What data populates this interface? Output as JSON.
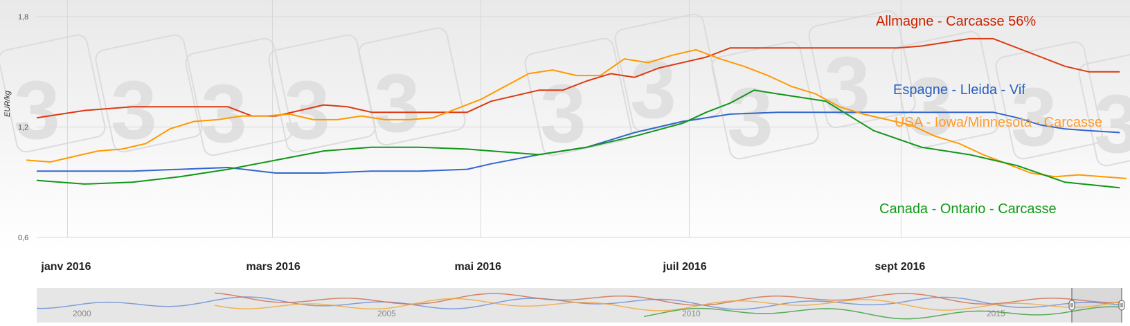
{
  "chart_data": {
    "type": "line",
    "ylabel": "EUR/kg",
    "ylim": [
      0.6,
      1.8
    ],
    "yticks": [
      0.6,
      1.2,
      1.8
    ],
    "ytick_labels": [
      "0,6",
      "1,2",
      "1,8"
    ],
    "xlim": [
      "2015-12-23",
      "2016-11-07"
    ],
    "xticks": [
      {
        "date": "2016-01-01",
        "label": "janv 2016"
      },
      {
        "date": "2016-03-01",
        "label": "mars 2016"
      },
      {
        "date": "2016-05-01",
        "label": "mai 2016"
      },
      {
        "date": "2016-07-01",
        "label": "juil 2016"
      },
      {
        "date": "2016-09-01",
        "label": "sept 2016"
      }
    ],
    "grid": true,
    "legend": "inline-labels",
    "series": [
      {
        "name": "Allmagne - Carcasse 56%",
        "color": "#dc3912",
        "points": [
          [
            "2015-12-23",
            1.25
          ],
          [
            "2016-01-06",
            1.29
          ],
          [
            "2016-01-20",
            1.31
          ],
          [
            "2016-02-03",
            1.31
          ],
          [
            "2016-02-17",
            1.31
          ],
          [
            "2016-02-24",
            1.26
          ],
          [
            "2016-03-02",
            1.26
          ],
          [
            "2016-03-16",
            1.32
          ],
          [
            "2016-03-23",
            1.31
          ],
          [
            "2016-03-30",
            1.28
          ],
          [
            "2016-04-13",
            1.28
          ],
          [
            "2016-04-27",
            1.28
          ],
          [
            "2016-05-04",
            1.34
          ],
          [
            "2016-05-18",
            1.4
          ],
          [
            "2016-05-25",
            1.4
          ],
          [
            "2016-06-01",
            1.45
          ],
          [
            "2016-06-08",
            1.49
          ],
          [
            "2016-06-15",
            1.47
          ],
          [
            "2016-06-22",
            1.52
          ],
          [
            "2016-07-06",
            1.58
          ],
          [
            "2016-07-13",
            1.63
          ],
          [
            "2016-07-27",
            1.63
          ],
          [
            "2016-08-10",
            1.63
          ],
          [
            "2016-08-31",
            1.63
          ],
          [
            "2016-09-07",
            1.64
          ],
          [
            "2016-09-21",
            1.68
          ],
          [
            "2016-09-28",
            1.68
          ],
          [
            "2016-10-12",
            1.58
          ],
          [
            "2016-10-19",
            1.53
          ],
          [
            "2016-10-26",
            1.5
          ],
          [
            "2016-11-04",
            1.5
          ]
        ]
      },
      {
        "name": "Espagne - Lleida - Vif",
        "color": "#3366cc",
        "points": [
          [
            "2015-12-23",
            0.96
          ],
          [
            "2016-01-06",
            0.96
          ],
          [
            "2016-01-20",
            0.96
          ],
          [
            "2016-02-03",
            0.97
          ],
          [
            "2016-02-17",
            0.98
          ],
          [
            "2016-03-02",
            0.95
          ],
          [
            "2016-03-16",
            0.95
          ],
          [
            "2016-03-30",
            0.96
          ],
          [
            "2016-04-13",
            0.96
          ],
          [
            "2016-04-27",
            0.97
          ],
          [
            "2016-05-04",
            1.0
          ],
          [
            "2016-05-18",
            1.05
          ],
          [
            "2016-06-01",
            1.09
          ],
          [
            "2016-06-15",
            1.17
          ],
          [
            "2016-06-29",
            1.23
          ],
          [
            "2016-07-13",
            1.27
          ],
          [
            "2016-07-27",
            1.28
          ],
          [
            "2016-08-10",
            1.28
          ],
          [
            "2016-08-24",
            1.28
          ],
          [
            "2016-09-07",
            1.28
          ],
          [
            "2016-09-21",
            1.28
          ],
          [
            "2016-09-28",
            1.28
          ],
          [
            "2016-10-05",
            1.25
          ],
          [
            "2016-10-12",
            1.21
          ],
          [
            "2016-10-19",
            1.19
          ],
          [
            "2016-10-26",
            1.18
          ],
          [
            "2016-11-04",
            1.17
          ]
        ]
      },
      {
        "name": "USA - Iowa/Minnesota - Carcasse",
        "color": "#ff9900",
        "points": [
          [
            "2015-12-20",
            1.02
          ],
          [
            "2015-12-27",
            1.01
          ],
          [
            "2016-01-03",
            1.04
          ],
          [
            "2016-01-10",
            1.07
          ],
          [
            "2016-01-17",
            1.08
          ],
          [
            "2016-01-24",
            1.11
          ],
          [
            "2016-01-31",
            1.19
          ],
          [
            "2016-02-07",
            1.23
          ],
          [
            "2016-02-14",
            1.24
          ],
          [
            "2016-02-21",
            1.26
          ],
          [
            "2016-02-28",
            1.26
          ],
          [
            "2016-03-06",
            1.27
          ],
          [
            "2016-03-13",
            1.24
          ],
          [
            "2016-03-20",
            1.24
          ],
          [
            "2016-03-27",
            1.26
          ],
          [
            "2016-04-03",
            1.24
          ],
          [
            "2016-04-10",
            1.24
          ],
          [
            "2016-04-17",
            1.25
          ],
          [
            "2016-04-24",
            1.3
          ],
          [
            "2016-05-01",
            1.35
          ],
          [
            "2016-05-08",
            1.42
          ],
          [
            "2016-05-15",
            1.49
          ],
          [
            "2016-05-22",
            1.51
          ],
          [
            "2016-05-29",
            1.48
          ],
          [
            "2016-06-05",
            1.48
          ],
          [
            "2016-06-12",
            1.57
          ],
          [
            "2016-06-19",
            1.55
          ],
          [
            "2016-06-26",
            1.59
          ],
          [
            "2016-07-03",
            1.62
          ],
          [
            "2016-07-10",
            1.57
          ],
          [
            "2016-07-17",
            1.53
          ],
          [
            "2016-07-24",
            1.48
          ],
          [
            "2016-07-31",
            1.42
          ],
          [
            "2016-08-07",
            1.38
          ],
          [
            "2016-08-14",
            1.31
          ],
          [
            "2016-08-21",
            1.27
          ],
          [
            "2016-08-28",
            1.24
          ],
          [
            "2016-09-04",
            1.21
          ],
          [
            "2016-09-11",
            1.15
          ],
          [
            "2016-09-18",
            1.11
          ],
          [
            "2016-09-25",
            1.05
          ],
          [
            "2016-10-02",
            1.0
          ],
          [
            "2016-10-09",
            0.95
          ],
          [
            "2016-10-16",
            0.93
          ],
          [
            "2016-10-23",
            0.94
          ],
          [
            "2016-10-30",
            0.93
          ],
          [
            "2016-11-06",
            0.92
          ]
        ]
      },
      {
        "name": "Canada - Ontario - Carcasse",
        "color": "#109618",
        "points": [
          [
            "2015-12-23",
            0.91
          ],
          [
            "2016-01-06",
            0.89
          ],
          [
            "2016-01-20",
            0.9
          ],
          [
            "2016-02-03",
            0.93
          ],
          [
            "2016-02-17",
            0.97
          ],
          [
            "2016-03-02",
            1.02
          ],
          [
            "2016-03-16",
            1.07
          ],
          [
            "2016-03-30",
            1.09
          ],
          [
            "2016-04-13",
            1.09
          ],
          [
            "2016-04-27",
            1.08
          ],
          [
            "2016-05-04",
            1.07
          ],
          [
            "2016-05-18",
            1.05
          ],
          [
            "2016-06-01",
            1.09
          ],
          [
            "2016-06-15",
            1.15
          ],
          [
            "2016-06-29",
            1.22
          ],
          [
            "2016-07-06",
            1.28
          ],
          [
            "2016-07-13",
            1.33
          ],
          [
            "2016-07-20",
            1.4
          ],
          [
            "2016-07-27",
            1.38
          ],
          [
            "2016-08-10",
            1.34
          ],
          [
            "2016-08-24",
            1.18
          ],
          [
            "2016-09-07",
            1.09
          ],
          [
            "2016-09-21",
            1.05
          ],
          [
            "2016-10-05",
            0.99
          ],
          [
            "2016-10-19",
            0.9
          ],
          [
            "2016-11-04",
            0.87
          ]
        ]
      }
    ]
  },
  "navigator": {
    "tick_labels": [
      "2000",
      "2005",
      "2010",
      "2015"
    ]
  },
  "watermark": {
    "glyph": "3"
  }
}
